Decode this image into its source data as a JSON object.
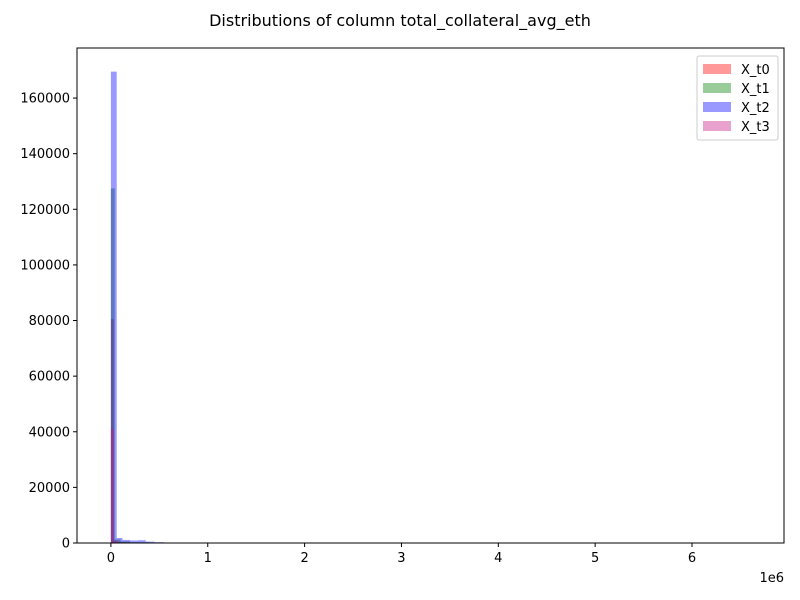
{
  "chart_data": {
    "type": "bar",
    "title": "Distributions of column total_collateral_avg_eth",
    "xlabel": "",
    "ylabel": "",
    "x_offset_text": "1e6",
    "xlim": [
      -350000,
      6950000
    ],
    "ylim": [
      0,
      178000
    ],
    "x_ticks": [
      0,
      1000000,
      2000000,
      3000000,
      4000000,
      5000000,
      6000000
    ],
    "x_tick_labels": [
      "0",
      "1",
      "2",
      "3",
      "4",
      "5",
      "6"
    ],
    "y_ticks": [
      0,
      20000,
      40000,
      60000,
      80000,
      100000,
      120000,
      140000,
      160000
    ],
    "y_tick_labels": [
      "0",
      "20000",
      "40000",
      "60000",
      "80000",
      "100000",
      "120000",
      "140000",
      "160000"
    ],
    "legend_position": "top-right",
    "grid": false,
    "series": [
      {
        "name": "X_t0",
        "color": "#ff0000",
        "bins": [
          {
            "x0": 0,
            "x1": 30000,
            "count": 80500
          },
          {
            "x0": 30000,
            "x1": 60000,
            "count": 900
          },
          {
            "x0": 60000,
            "x1": 100000,
            "count": 500
          },
          {
            "x0": 100000,
            "x1": 200000,
            "count": 300
          }
        ]
      },
      {
        "name": "X_t1",
        "color": "#008000",
        "bins": [
          {
            "x0": 0,
            "x1": 40000,
            "count": 127500
          },
          {
            "x0": 40000,
            "x1": 100000,
            "count": 1300
          },
          {
            "x0": 100000,
            "x1": 200000,
            "count": 600
          },
          {
            "x0": 200000,
            "x1": 400000,
            "count": 300
          }
        ]
      },
      {
        "name": "X_t2",
        "color": "#0000ff",
        "bins": [
          {
            "x0": 0,
            "x1": 60000,
            "count": 169500
          },
          {
            "x0": 60000,
            "x1": 120000,
            "count": 1800
          },
          {
            "x0": 120000,
            "x1": 200000,
            "count": 1100
          },
          {
            "x0": 200000,
            "x1": 280000,
            "count": 900
          },
          {
            "x0": 280000,
            "x1": 360000,
            "count": 1000
          },
          {
            "x0": 360000,
            "x1": 450000,
            "count": 500
          },
          {
            "x0": 450000,
            "x1": 550000,
            "count": 300
          }
        ]
      },
      {
        "name": "X_t3",
        "color": "#c71585",
        "bins": [
          {
            "x0": 0,
            "x1": 30000,
            "count": 41000
          },
          {
            "x0": 30000,
            "x1": 80000,
            "count": 600
          },
          {
            "x0": 80000,
            "x1": 300000,
            "count": 200
          }
        ]
      }
    ]
  }
}
